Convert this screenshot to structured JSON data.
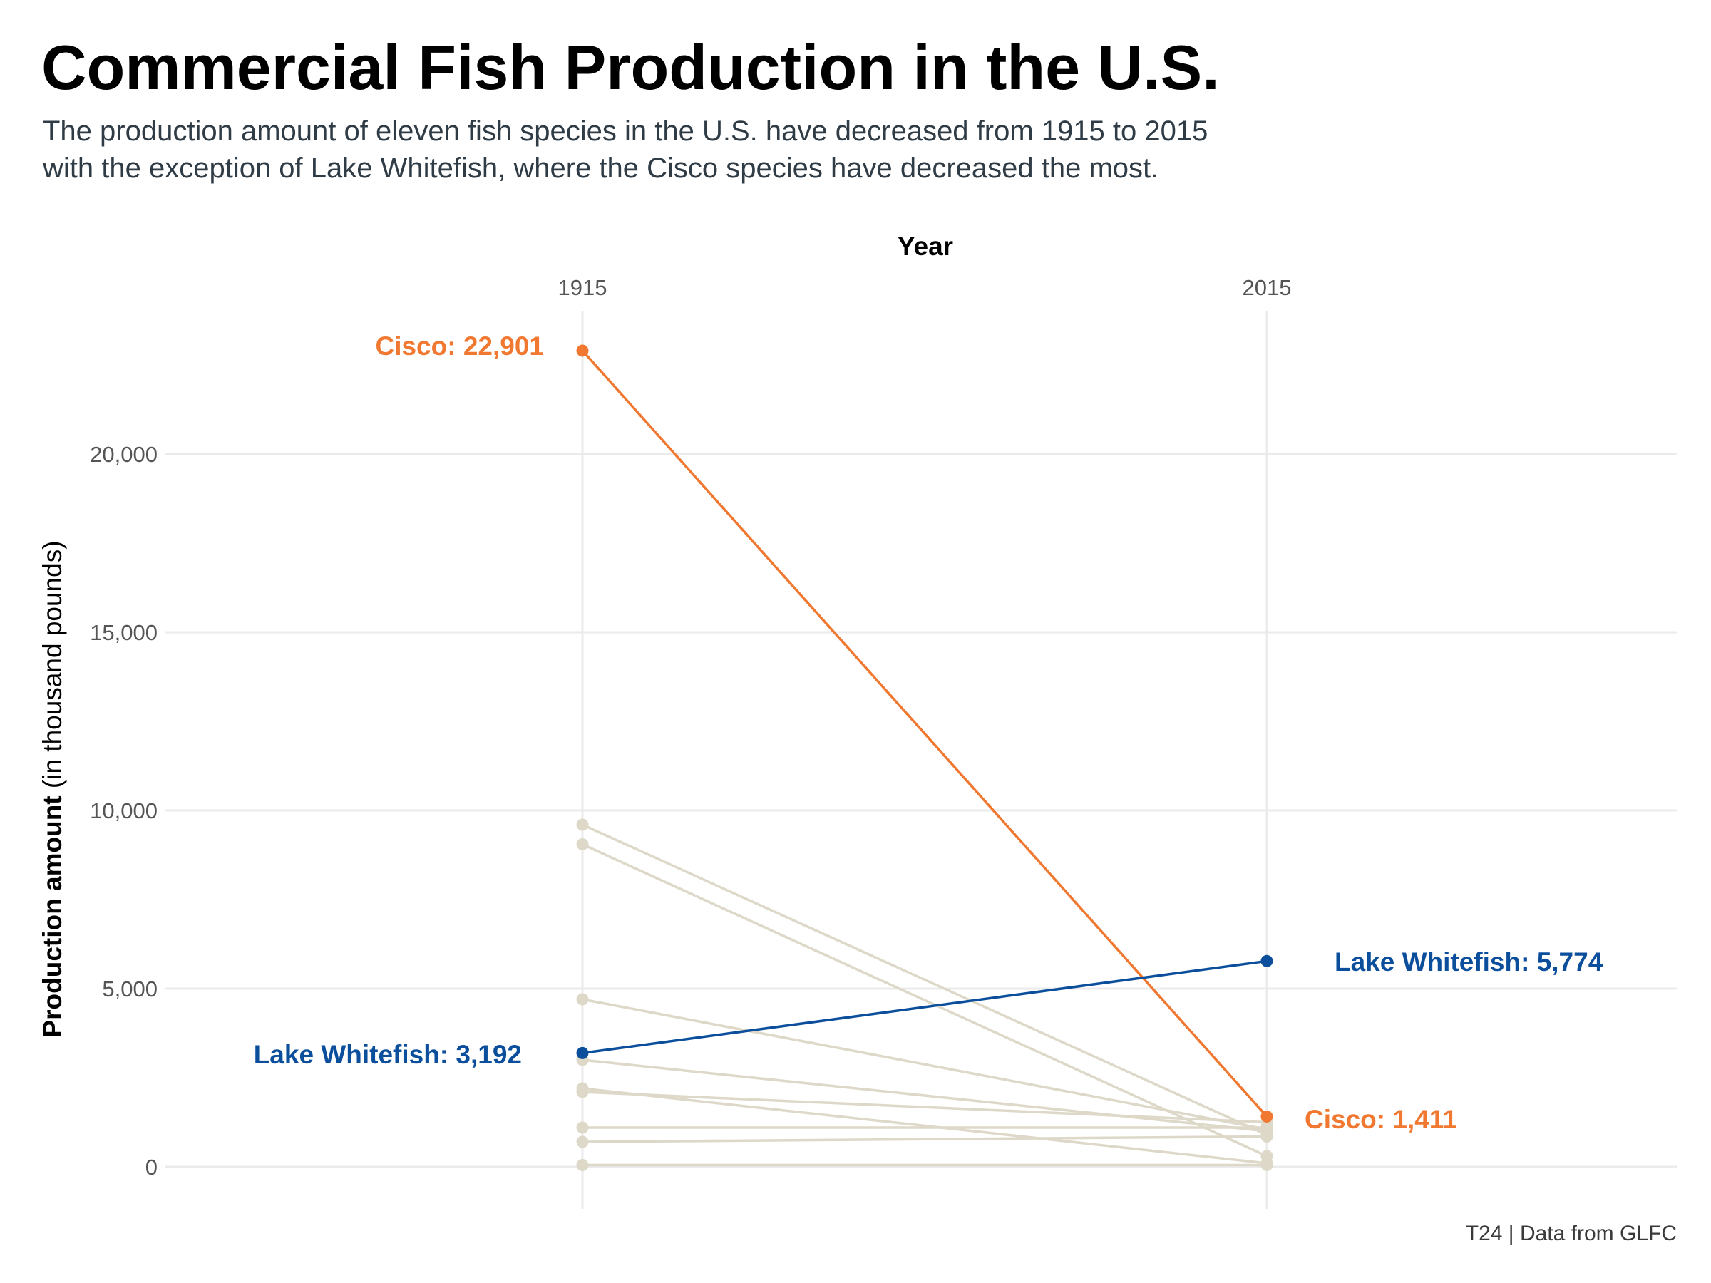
{
  "chart_data": {
    "type": "line",
    "title": "Commercial Fish Production in the U.S.",
    "subtitle": [
      "The production amount of eleven fish species in the U.S. have decreased from 1915 to 2015",
      "with the exception of Lake Whitefish, where the Cisco species have decreased the most."
    ],
    "caption": "T24 | Data from GLFC",
    "xlabel": "Year",
    "ylabel_bold": "Production amount",
    "ylabel_rest": " (in thousand pounds)",
    "x": [
      "1915",
      "2015"
    ],
    "x_axis_position": "top",
    "ylim": [
      0,
      22901
    ],
    "yticks": [
      0,
      5000,
      10000,
      15000,
      20000
    ],
    "ytick_labels": [
      "0",
      "5,000",
      "10,000",
      "15,000",
      "20,000"
    ],
    "grid": true,
    "legend": "none",
    "colors": {
      "highlight_orange": "#f07830",
      "highlight_blue": "#0b4f9c",
      "muted": "#ddd8c8",
      "grid": "#ebebeb"
    },
    "series": [
      {
        "values": [
          22901,
          1411
        ],
        "highlight": "orange"
      },
      {
        "values": [
          3192,
          5774
        ],
        "highlight": "blue"
      },
      {
        "values": [
          9600,
          900
        ],
        "highlight": "none"
      },
      {
        "values": [
          9050,
          300
        ],
        "highlight": "none"
      },
      {
        "values": [
          4700,
          1050
        ],
        "highlight": "none"
      },
      {
        "values": [
          3000,
          1000
        ],
        "highlight": "none"
      },
      {
        "values": [
          2200,
          100
        ],
        "highlight": "none"
      },
      {
        "values": [
          2100,
          1250
        ],
        "highlight": "none"
      },
      {
        "values": [
          1100,
          1100
        ],
        "highlight": "none"
      },
      {
        "values": [
          700,
          850
        ],
        "highlight": "none"
      },
      {
        "values": [
          50,
          50
        ],
        "highlight": "none"
      }
    ],
    "annotations": [
      {
        "text": "Cisco: 22,901",
        "color": "orange"
      },
      {
        "text": "Cisco: 1,411",
        "color": "orange"
      },
      {
        "text": "Lake Whitefish: 3,192",
        "color": "blue"
      },
      {
        "text": "Lake Whitefish: 5,774",
        "color": "blue"
      }
    ]
  }
}
